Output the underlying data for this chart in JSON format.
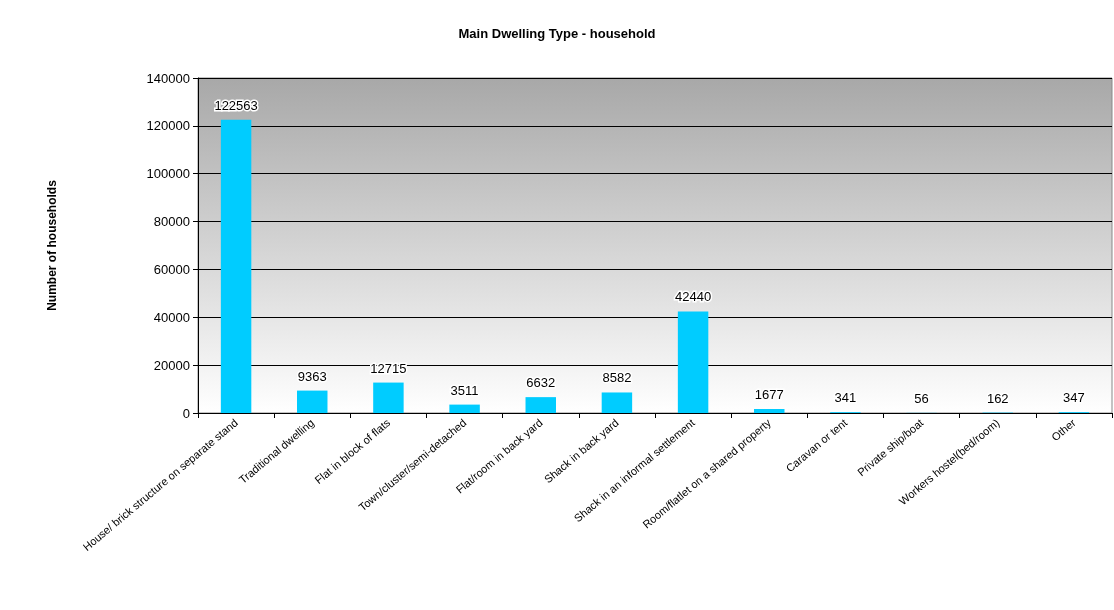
{
  "chart_data": {
    "type": "bar",
    "title": "Main Dwelling Type - household",
    "ylabel": "Number of households",
    "categories": [
      "House/ brick structure on separate stand",
      "Traditional dwelling",
      "Flat in block of flats",
      "Town/cluster/semi-detached",
      "Flat/room in back yard",
      "Shack in back yard",
      "Shack in an informal settlement",
      "Room/flatlet on a shared property",
      "Caravan or tent",
      "Private ship/boat",
      "Workers hostel(bed/room)",
      "Other"
    ],
    "values": [
      122563,
      9363,
      12715,
      3511,
      6632,
      8582,
      42440,
      1677,
      341,
      56,
      162,
      347
    ],
    "color": "#00ccff",
    "ylim": [
      0,
      140000
    ],
    "yticks": [
      0,
      20000,
      40000,
      60000,
      80000,
      100000,
      120000,
      140000
    ],
    "grid": "y",
    "data_labels": true
  }
}
